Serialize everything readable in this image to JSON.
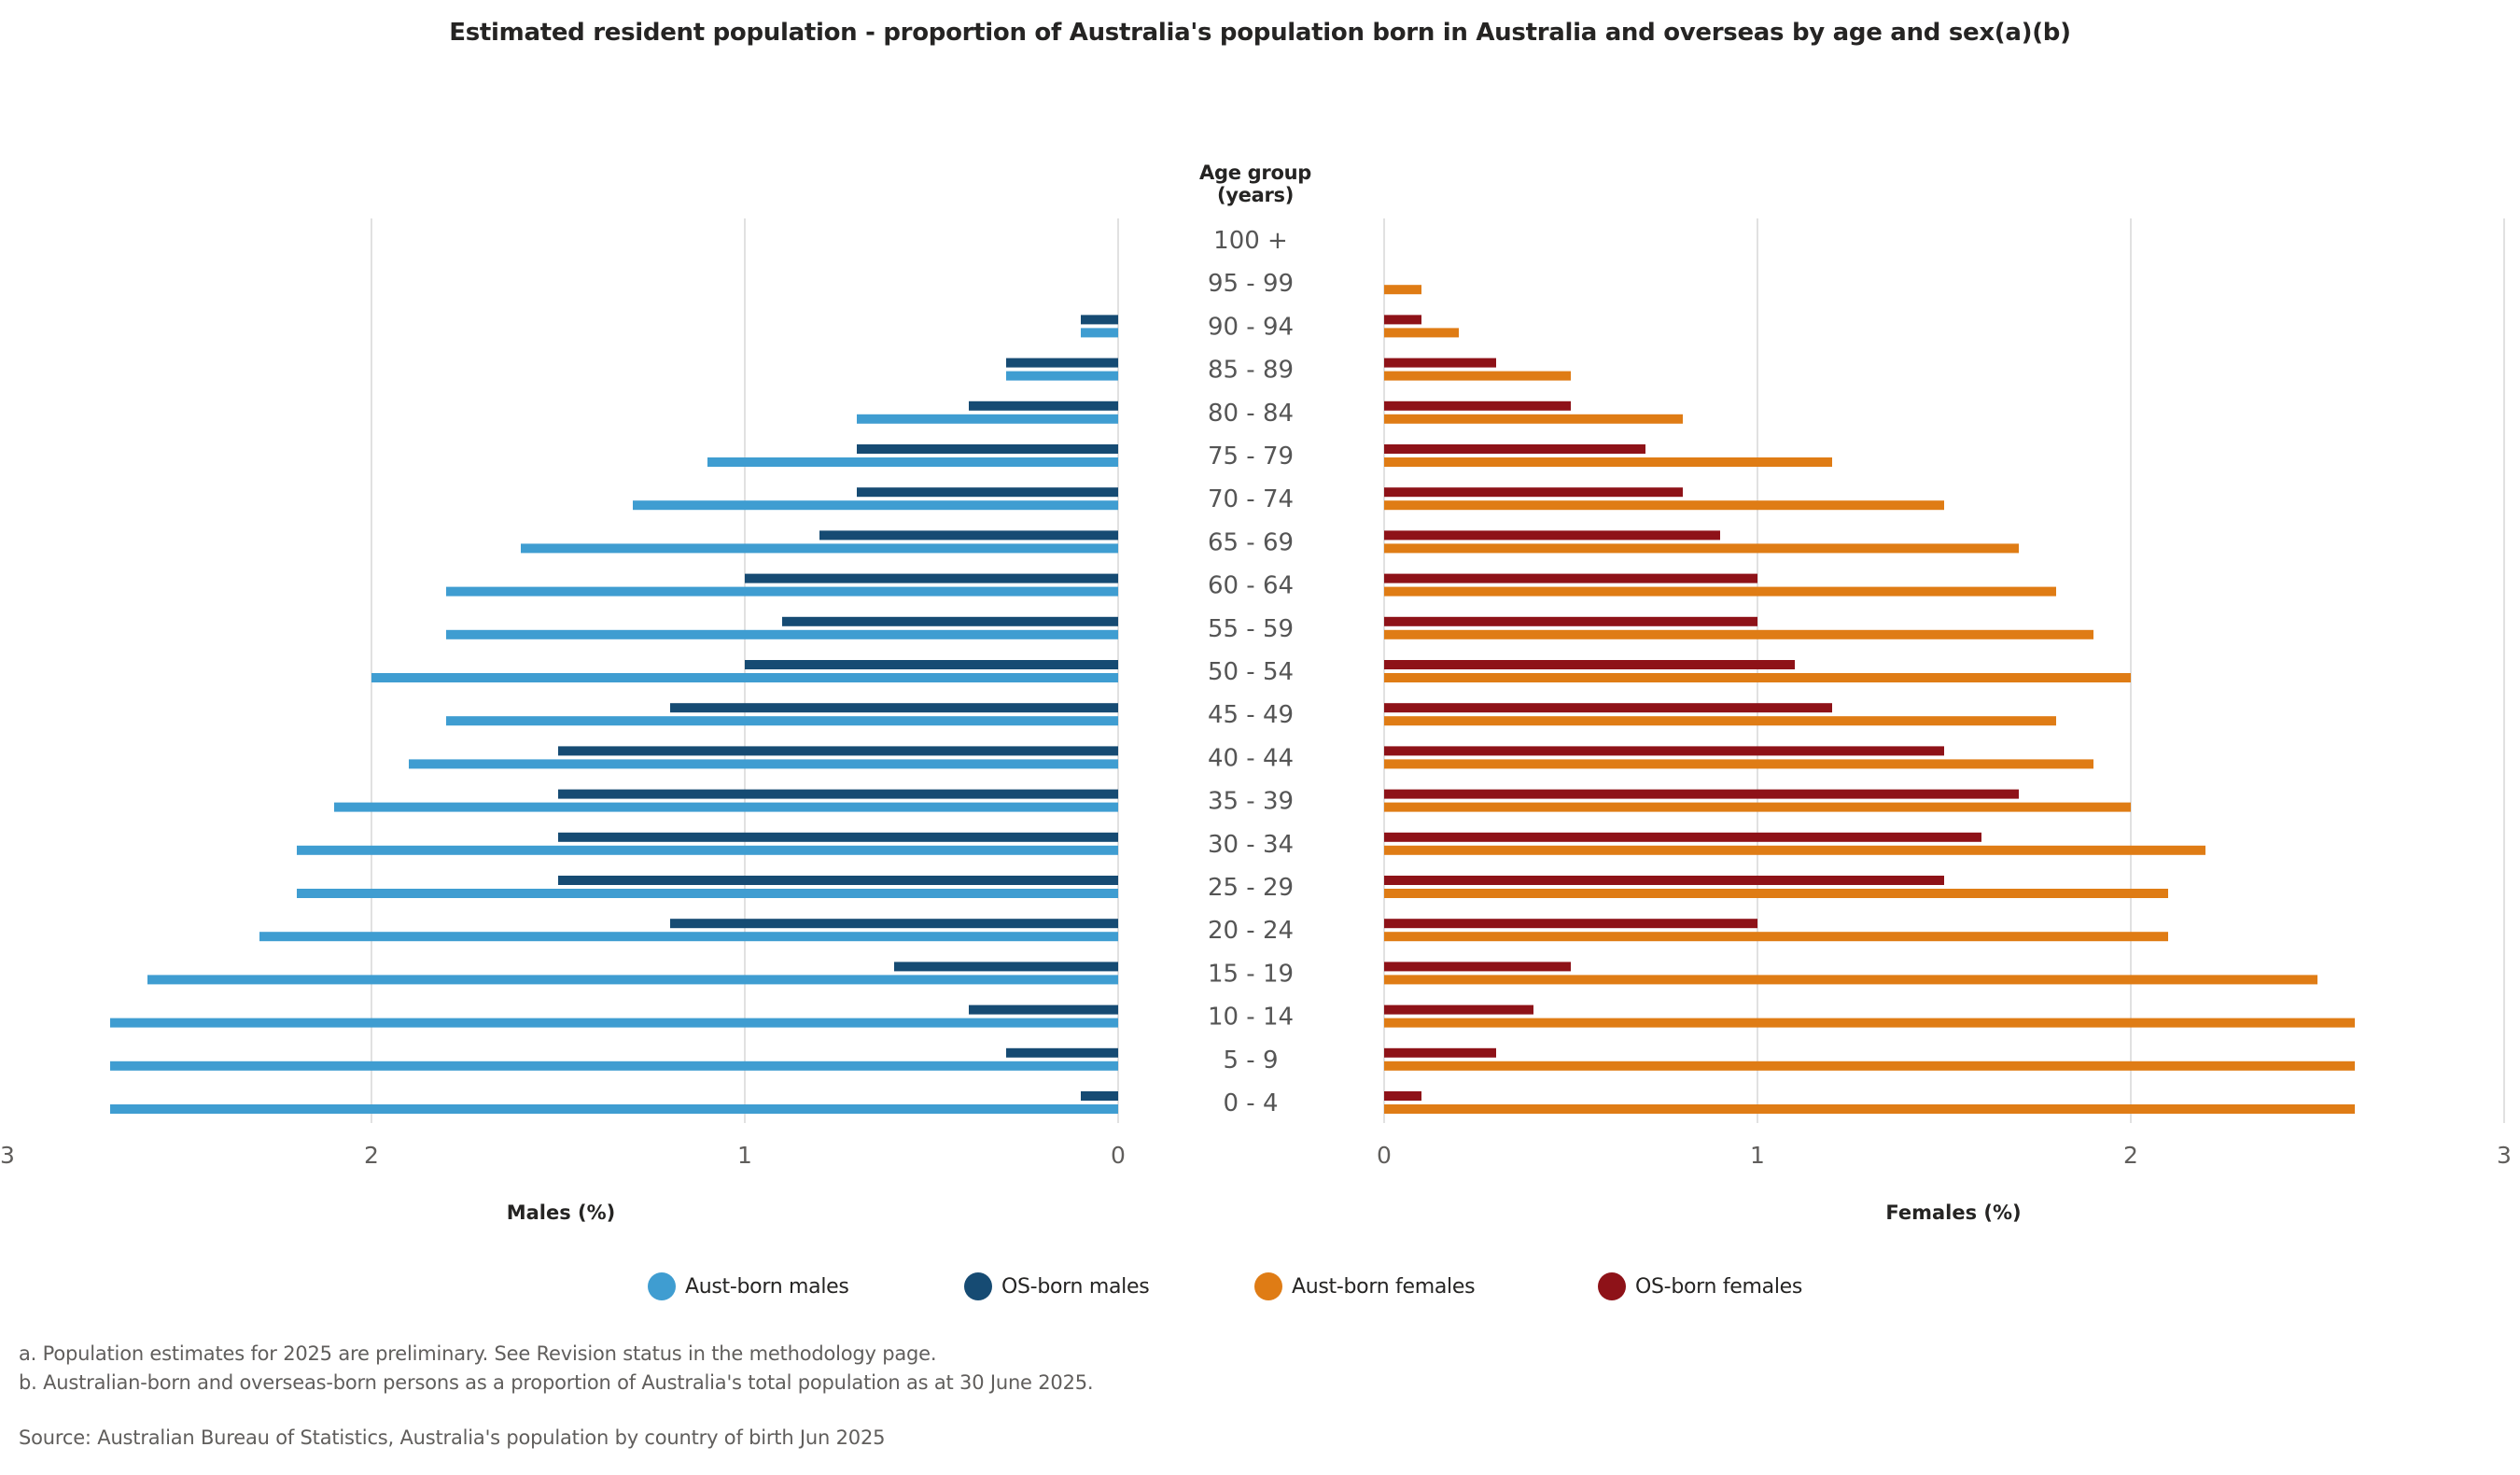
{
  "title": "Estimated resident population - proportion of Australia's population born in Australia and overseas by age and sex(a)(b)",
  "category_axis_title": "Age group (years)",
  "legend": [
    {
      "label": "Aust-born males",
      "color": "#3f9dd1"
    },
    {
      "label": "OS-born males",
      "color": "#164b73"
    },
    {
      "label": "Aust-born females",
      "color": "#df7c15"
    },
    {
      "label": "OS-born females",
      "color": "#8e1218"
    }
  ],
  "notes": {
    "a": "a. Population estimates for 2025 are preliminary. See Revision status in the methodology page.",
    "b": "b. Australian-born and overseas-born persons as a proportion of Australia's total population as at 30 June 2025.",
    "source": "Source: Australian Bureau of Statistics, Australia's population by country of birth Jun 2025"
  },
  "chart_data": {
    "type": "bar",
    "orientation": "horizontal",
    "layout": "population-pyramid",
    "title": "Estimated resident population - proportion of Australia's population born in Australia and overseas by age and sex(a)(b)",
    "category_axis_title": "Age group (years)",
    "categories": [
      "100 +",
      "95 - 99",
      "90 - 94",
      "85 - 89",
      "80 - 84",
      "75 - 79",
      "70 - 74",
      "65 - 69",
      "60 - 64",
      "55 - 59",
      "50 - 54",
      "45 - 49",
      "40 - 44",
      "35 - 39",
      "30 - 34",
      "25 - 29",
      "20 - 24",
      "15 - 19",
      "10 - 14",
      "5 - 9",
      "0 - 4"
    ],
    "panels": [
      {
        "name": "males",
        "xlabel": "Males (%)",
        "xlim": [
          0,
          3
        ],
        "direction": "reversed",
        "ticks": [
          "3",
          "2",
          "1",
          "0"
        ],
        "grid": true,
        "series": [
          {
            "name": "OS-born males",
            "color": "#164b73",
            "values": [
              0,
              0,
              0.1,
              0.3,
              0.4,
              0.7,
              0.7,
              0.8,
              1.0,
              0.9,
              1.0,
              1.2,
              1.5,
              1.5,
              1.5,
              1.5,
              1.2,
              0.6,
              0.4,
              0.3,
              0.1
            ]
          },
          {
            "name": "Aust-born males",
            "color": "#3f9dd1",
            "values": [
              0,
              0,
              0.1,
              0.3,
              0.7,
              1.1,
              1.3,
              1.6,
              1.8,
              1.8,
              2.0,
              1.8,
              1.9,
              2.1,
              2.2,
              2.2,
              2.3,
              2.6,
              2.7,
              2.7,
              2.7
            ]
          }
        ]
      },
      {
        "name": "females",
        "xlabel": "Females (%)",
        "xlim": [
          0,
          3
        ],
        "direction": "normal",
        "ticks": [
          "0",
          "1",
          "2",
          "3"
        ],
        "grid": true,
        "series": [
          {
            "name": "OS-born females",
            "color": "#8e1218",
            "values": [
              0,
              0,
              0.1,
              0.3,
              0.5,
              0.7,
              0.8,
              0.9,
              1.0,
              1.0,
              1.1,
              1.2,
              1.5,
              1.7,
              1.6,
              1.5,
              1.0,
              0.5,
              0.4,
              0.3,
              0.1
            ]
          },
          {
            "name": "Aust-born females",
            "color": "#df7c15",
            "values": [
              0,
              0.1,
              0.2,
              0.5,
              0.8,
              1.2,
              1.5,
              1.7,
              1.8,
              1.9,
              2.0,
              1.8,
              1.9,
              2.0,
              2.2,
              2.1,
              2.1,
              2.5,
              2.6,
              2.6,
              2.6
            ]
          }
        ]
      }
    ],
    "legend_position": "bottom"
  }
}
